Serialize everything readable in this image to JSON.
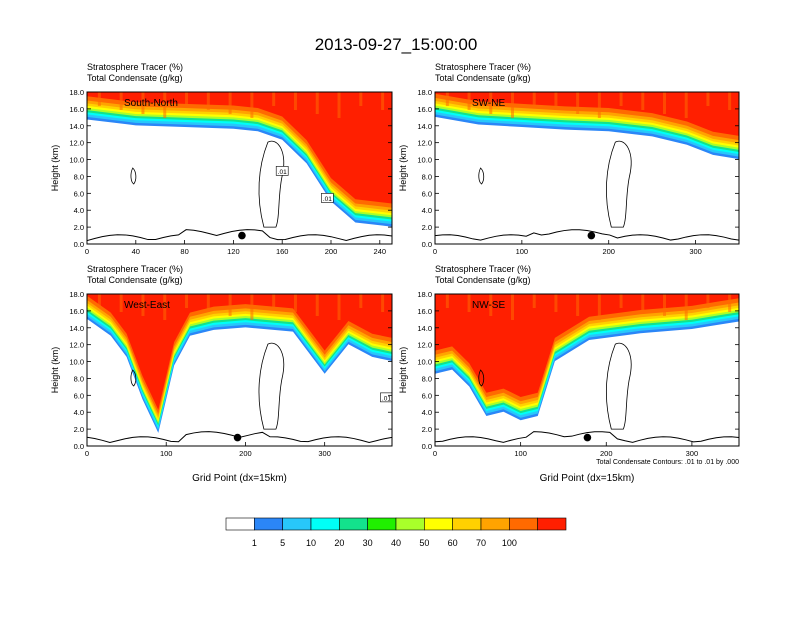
{
  "title": "2013-09-27_15:00:00",
  "chart_data": [
    {
      "type": "heatmap",
      "panel_label": "South-North",
      "header_line1": "Stratosphere Tracer   (%)",
      "header_line2": "Total Condensate   (g/kg)",
      "ylabel": "Height (km)",
      "xlabel": "",
      "xlim": [
        0,
        250
      ],
      "ylim": [
        0,
        18
      ],
      "xticks": [
        "0",
        "40",
        "80",
        "120",
        "160",
        "200",
        "240"
      ],
      "yticks": [
        "0.0",
        "2.0",
        "4.0",
        "6.0",
        "8.0",
        "10.0",
        "12.0",
        "14.0",
        "16.0",
        "18.0"
      ],
      "marker": {
        "x": 127,
        "y": 1.0
      },
      "contour_labels": [
        {
          "text": ".01",
          "x": 160,
          "y": 8.6
        },
        {
          "text": ".01",
          "x": 197,
          "y": 5.4
        }
      ],
      "tracer_band": {
        "x": [
          0,
          40,
          80,
          120,
          140,
          160,
          180,
          200,
          220,
          250
        ],
        "top_km": [
          18,
          18,
          18,
          18,
          18,
          18,
          18,
          18,
          18,
          18
        ],
        "base_km": [
          15.2,
          14.5,
          14.3,
          14.1,
          13.8,
          12.8,
          10.0,
          5.5,
          3.0,
          2.5
        ]
      }
    },
    {
      "type": "heatmap",
      "panel_label": "SW-NE",
      "header_line1": "Stratosphere Tracer   (%)",
      "header_line2": "Total Condensate   (g/kg)",
      "ylabel": "Height (km)",
      "xlabel": "",
      "xlim": [
        0,
        350
      ],
      "ylim": [
        0,
        18
      ],
      "xticks": [
        "0",
        "100",
        "200",
        "300"
      ],
      "yticks": [
        "0.0",
        "2.0",
        "4.0",
        "6.0",
        "8.0",
        "10.0",
        "12.0",
        "14.0",
        "16.0",
        "18.0"
      ],
      "marker": {
        "x": 180,
        "y": 1.0
      },
      "contour_labels": [],
      "tracer_band": {
        "x": [
          0,
          50,
          100,
          150,
          200,
          250,
          290,
          320,
          350
        ],
        "top_km": [
          18,
          18,
          18,
          18,
          18,
          18,
          18,
          18,
          18
        ],
        "base_km": [
          15.5,
          14.6,
          14.3,
          14.0,
          13.8,
          13.2,
          12.2,
          11.0,
          10.5
        ]
      }
    },
    {
      "type": "heatmap",
      "panel_label": "West-East",
      "header_line1": "Stratosphere Tracer   (%)",
      "header_line2": "Total Condensate   (g/kg)",
      "ylabel": "Height (km)",
      "xlabel": "Grid Point (dx=15km)",
      "xlim": [
        0,
        385
      ],
      "ylim": [
        0,
        18
      ],
      "xticks": [
        "0",
        "100",
        "200",
        "300"
      ],
      "yticks": [
        "0.0",
        "2.0",
        "4.0",
        "6.0",
        "8.0",
        "10.0",
        "12.0",
        "14.0",
        "16.0",
        "18.0"
      ],
      "marker": {
        "x": 190,
        "y": 1.0
      },
      "contour_labels": [
        {
          "text": ".01",
          "x": 378,
          "y": 5.7
        }
      ],
      "tracer_band": {
        "x": [
          0,
          30,
          50,
          70,
          90,
          110,
          130,
          160,
          200,
          260,
          300,
          330,
          360,
          385
        ],
        "top_km": [
          18,
          18,
          18,
          18,
          18,
          18,
          18,
          18,
          18,
          18,
          18,
          18,
          18,
          18
        ],
        "base_km": [
          15.5,
          13.5,
          11.0,
          6.0,
          2.0,
          10.0,
          13.5,
          14.2,
          14.5,
          14.0,
          9.0,
          12.5,
          11.0,
          10.5
        ]
      }
    },
    {
      "type": "heatmap",
      "panel_label": "NW-SE",
      "header_line1": "Stratosphere Tracer   (%)",
      "header_line2": "Total Condensate   (g/kg)",
      "ylabel": "Height (km)",
      "xlabel": "Grid Point (dx=15km)",
      "xlim": [
        0,
        355
      ],
      "ylim": [
        0,
        18
      ],
      "xticks": [
        "0",
        "100",
        "200",
        "300"
      ],
      "yticks": [
        "0.0",
        "2.0",
        "4.0",
        "6.0",
        "8.0",
        "10.0",
        "12.0",
        "14.0",
        "16.0",
        "18.0"
      ],
      "marker": {
        "x": 178,
        "y": 1.0
      },
      "contour_labels": [],
      "footnote": "Total Condensate Contours: .01 to .01 by .000",
      "tracer_band": {
        "x": [
          0,
          20,
          40,
          60,
          80,
          100,
          120,
          140,
          180,
          240,
          300,
          330,
          355
        ],
        "top_km": [
          18,
          18,
          18,
          18,
          18,
          18,
          18,
          18,
          18,
          18,
          18,
          18,
          18
        ],
        "base_km": [
          9.0,
          9.5,
          7.5,
          4.0,
          4.5,
          3.5,
          4.0,
          10.5,
          13.0,
          13.8,
          14.3,
          14.8,
          15.2
        ]
      }
    }
  ],
  "colorbar": {
    "labels": [
      "1",
      "5",
      "10",
      "20",
      "30",
      "40",
      "50",
      "60",
      "70",
      "100"
    ],
    "colors": [
      "#ffffff",
      "#2b86f7",
      "#28c7fa",
      "#00fff7",
      "#13e28c",
      "#20f000",
      "#a9ff2a",
      "#ffff00",
      "#ffd100",
      "#ffa300",
      "#ff6a00",
      "#ff1f00"
    ]
  }
}
